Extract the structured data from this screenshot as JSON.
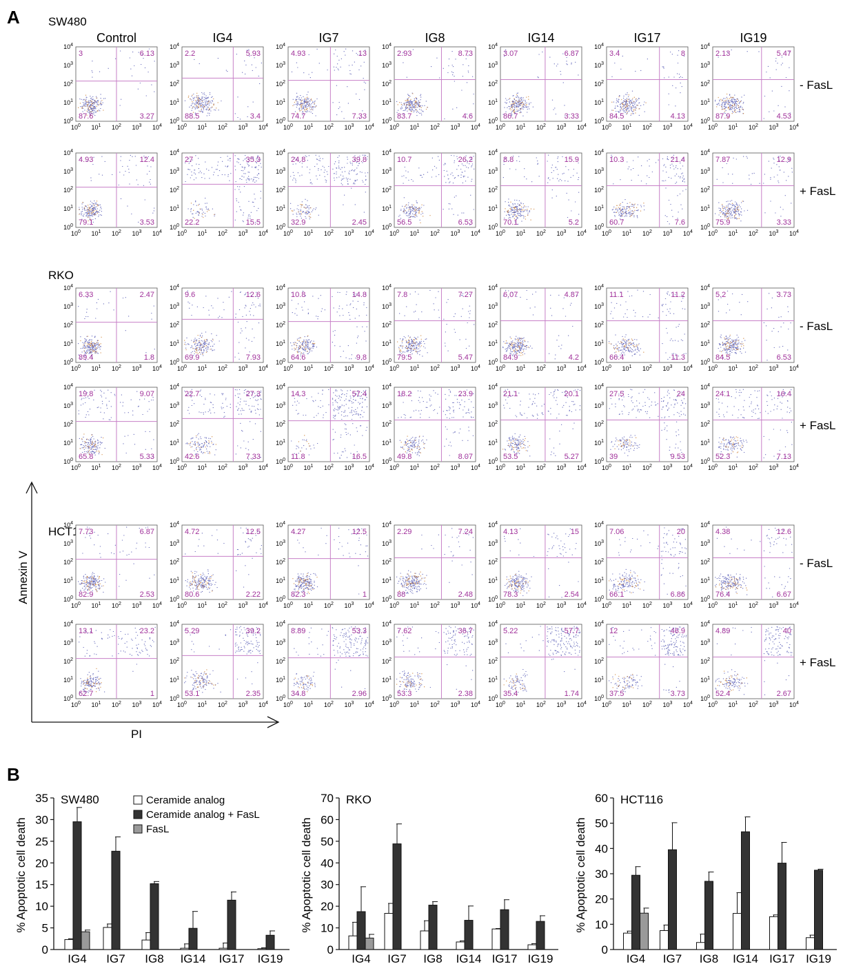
{
  "panel_a": {
    "letter": "A",
    "treatments": [
      "Control",
      "IG4",
      "IG7",
      "IG8",
      "IG14",
      "IG17",
      "IG19"
    ],
    "row_labels": [
      "- FasL",
      "+ FasL"
    ],
    "y_axis_label": "Annexin V",
    "x_axis_label": "PI",
    "tick_labels": [
      "10",
      "10",
      "10",
      "10",
      "10"
    ],
    "tick_exponents": [
      "0",
      "1",
      "2",
      "3",
      "4"
    ],
    "cell_lines": [
      {
        "name": "SW480",
        "rows": [
          {
            "condition": "- FasL",
            "quadrants": [
              {
                "ul": "3",
                "ur": "6.13",
                "ll": "87.6",
                "lr": "3.27"
              },
              {
                "ul": "2.2",
                "ur": "5.93",
                "ll": "88.5",
                "lr": "3.4"
              },
              {
                "ul": "4.93",
                "ur": "13",
                "ll": "74.7",
                "lr": "7.33"
              },
              {
                "ul": "2.93",
                "ur": "8.73",
                "ll": "83.7",
                "lr": "4.6"
              },
              {
                "ul": "3.07",
                "ur": "6.87",
                "ll": "86.7",
                "lr": "3.33"
              },
              {
                "ul": "3.4",
                "ur": "8",
                "ll": "84.5",
                "lr": "4.13"
              },
              {
                "ul": "2.13",
                "ur": "5.47",
                "ll": "87.9",
                "lr": "4.53"
              }
            ]
          },
          {
            "condition": "+ FasL",
            "quadrants": [
              {
                "ul": "4.93",
                "ur": "12.4",
                "ll": "79.1",
                "lr": "3.53"
              },
              {
                "ul": "27",
                "ur": "35.3",
                "ll": "22.2",
                "lr": "15.5"
              },
              {
                "ul": "24.8",
                "ur": "39.8",
                "ll": "32.9",
                "lr": "2.45"
              },
              {
                "ul": "10.7",
                "ur": "26.2",
                "ll": "56.5",
                "lr": "6.53"
              },
              {
                "ul": "8.8",
                "ur": "15.9",
                "ll": "70.1",
                "lr": "5.2"
              },
              {
                "ul": "10.3",
                "ur": "21.4",
                "ll": "60.7",
                "lr": "7.6"
              },
              {
                "ul": "7.87",
                "ur": "12.9",
                "ll": "75.9",
                "lr": "3.33"
              }
            ]
          }
        ]
      },
      {
        "name": "RKO",
        "rows": [
          {
            "condition": "- FasL",
            "quadrants": [
              {
                "ul": "6.33",
                "ur": "2.47",
                "ll": "89.4",
                "lr": "1.8"
              },
              {
                "ul": "9.6",
                "ur": "12.6",
                "ll": "69.9",
                "lr": "7.93"
              },
              {
                "ul": "10.8",
                "ur": "14.8",
                "ll": "64.6",
                "lr": "9.8"
              },
              {
                "ul": "7.8",
                "ur": "7.27",
                "ll": "79.5",
                "lr": "5.47"
              },
              {
                "ul": "6.07",
                "ur": "4.87",
                "ll": "84.9",
                "lr": "4.2"
              },
              {
                "ul": "11.1",
                "ur": "11.2",
                "ll": "66.4",
                "lr": "11.3"
              },
              {
                "ul": "5.2",
                "ur": "3.73",
                "ll": "84.5",
                "lr": "6.53"
              }
            ]
          },
          {
            "condition": "+ FasL",
            "quadrants": [
              {
                "ul": "19.8",
                "ur": "9.07",
                "ll": "65.8",
                "lr": "5.33"
              },
              {
                "ul": "22.7",
                "ur": "27.3",
                "ll": "42.6",
                "lr": "7.33"
              },
              {
                "ul": "14.3",
                "ur": "57.4",
                "ll": "11.8",
                "lr": "16.5"
              },
              {
                "ul": "18.2",
                "ur": "23.9",
                "ll": "49.8",
                "lr": "8.07"
              },
              {
                "ul": "21.1",
                "ur": "20.1",
                "ll": "53.5",
                "lr": "5.27"
              },
              {
                "ul": "27.5",
                "ur": "24",
                "ll": "39",
                "lr": "9.53"
              },
              {
                "ul": "24.1",
                "ur": "16.4",
                "ll": "52.3",
                "lr": "7.13"
              }
            ]
          }
        ]
      },
      {
        "name": "HCT116",
        "rows": [
          {
            "condition": "- FasL",
            "quadrants": [
              {
                "ul": "7.73",
                "ur": "6.87",
                "ll": "82.9",
                "lr": "2.53"
              },
              {
                "ul": "4.72",
                "ur": "12.5",
                "ll": "80.6",
                "lr": "2.22"
              },
              {
                "ul": "4.27",
                "ur": "12.5",
                "ll": "82.3",
                "lr": "1"
              },
              {
                "ul": "2.29",
                "ur": "7.24",
                "ll": "88",
                "lr": "2.48"
              },
              {
                "ul": "4.13",
                "ur": "15",
                "ll": "78.3",
                "lr": "2.54"
              },
              {
                "ul": "7.06",
                "ur": "20",
                "ll": "66.1",
                "lr": "6.86"
              },
              {
                "ul": "4.38",
                "ur": "12.6",
                "ll": "76.4",
                "lr": "6.67"
              }
            ]
          },
          {
            "condition": "+ FasL",
            "quadrants": [
              {
                "ul": "13.1",
                "ur": "23.2",
                "ll": "62.7",
                "lr": "1"
              },
              {
                "ul": "5.29",
                "ur": "39.2",
                "ll": "53.1",
                "lr": "2.35"
              },
              {
                "ul": "8.89",
                "ur": "53.3",
                "ll": "34.8",
                "lr": "2.96"
              },
              {
                "ul": "7.62",
                "ur": "36.7",
                "ll": "53.3",
                "lr": "2.38"
              },
              {
                "ul": "5.22",
                "ur": "57.7",
                "ll": "35.4",
                "lr": "1.74"
              },
              {
                "ul": "12",
                "ur": "46.9",
                "ll": "37.5",
                "lr": "3.73"
              },
              {
                "ul": "4.89",
                "ur": "40",
                "ll": "52.4",
                "lr": "2.67"
              }
            ]
          }
        ]
      }
    ]
  },
  "panel_b": {
    "letter": "B",
    "legend": [
      "Ceramide analog",
      "Ceramide analog + FasL",
      "FasL"
    ]
  },
  "colors": {
    "quadrant_label": "#a0309a",
    "gate_line": "#c77fc7",
    "dots": "#3a3fa8",
    "dense_dots": "#c8741c",
    "bar_ceramide": "#ffffff",
    "bar_combo": "#333333",
    "bar_fasl": "#9a9a9a"
  },
  "chart_data": [
    {
      "type": "bar",
      "title": "SW480",
      "ylabel": "% Apoptotic cell death",
      "ylim": [
        0,
        35
      ],
      "yticks": [
        0,
        5,
        10,
        15,
        20,
        25,
        30,
        35
      ],
      "categories": [
        "IG4",
        "IG7",
        "IG8",
        "IG14",
        "IG17",
        "IG19"
      ],
      "series": [
        {
          "name": "Ceramide analog",
          "values": [
            2.3,
            5.1,
            2.2,
            0.3,
            0.3,
            0.2
          ],
          "errors": [
            0.2,
            0.8,
            1.7,
            1.0,
            1.2,
            0.2
          ]
        },
        {
          "name": "Ceramide analog + FasL",
          "values": [
            29.5,
            22.7,
            15.2,
            4.9,
            11.4,
            3.3
          ],
          "errors": [
            3.3,
            3.3,
            0.5,
            3.9,
            1.9,
            1.0
          ]
        },
        {
          "name": "FasL",
          "values": [
            4.1,
            null,
            null,
            null,
            null,
            null
          ],
          "errors": [
            0.4,
            null,
            null,
            null,
            null,
            null
          ]
        }
      ]
    },
    {
      "type": "bar",
      "title": "RKO",
      "ylabel": "% Apoptotic cell death",
      "ylim": [
        0,
        70
      ],
      "yticks": [
        0,
        10,
        20,
        30,
        40,
        50,
        60,
        70
      ],
      "categories": [
        "IG4",
        "IG7",
        "IG8",
        "IG14",
        "IG17",
        "IG19"
      ],
      "series": [
        {
          "name": "Ceramide analog",
          "values": [
            6.3,
            16.7,
            8.6,
            3.5,
            9.5,
            2.2
          ],
          "errors": [
            6.3,
            4.6,
            4.7,
            0.5,
            0.2,
            0.5
          ]
        },
        {
          "name": "Ceramide analog + FasL",
          "values": [
            17.5,
            48.8,
            20.5,
            13.5,
            18.4,
            13.0
          ],
          "errors": [
            11.5,
            9.2,
            1.6,
            6.6,
            4.6,
            2.6
          ]
        },
        {
          "name": "FasL",
          "values": [
            5.3,
            null,
            null,
            null,
            null,
            null
          ],
          "errors": [
            1.7,
            null,
            null,
            null,
            null,
            null
          ]
        }
      ]
    },
    {
      "type": "bar",
      "title": "HCT116",
      "ylabel": "% Apoptotic cell death",
      "ylim": [
        0,
        60
      ],
      "yticks": [
        0,
        10,
        20,
        30,
        40,
        50,
        60
      ],
      "categories": [
        "IG4",
        "IG7",
        "IG8",
        "IG14",
        "IG17",
        "IG19"
      ],
      "series": [
        {
          "name": "Ceramide analog",
          "values": [
            6.5,
            7.5,
            2.8,
            14.3,
            13.0,
            4.7
          ],
          "errors": [
            0.8,
            2.2,
            3.3,
            8.2,
            0.7,
            1.0
          ]
        },
        {
          "name": "Ceramide analog + FasL",
          "values": [
            29.4,
            39.5,
            27.0,
            46.6,
            34.2,
            31.4
          ],
          "errors": [
            3.4,
            10.7,
            3.7,
            5.9,
            8.2,
            0.4
          ]
        },
        {
          "name": "FasL",
          "values": [
            14.4,
            null,
            null,
            null,
            null,
            null
          ],
          "errors": [
            2.0,
            null,
            null,
            null,
            null,
            null
          ]
        }
      ]
    }
  ]
}
